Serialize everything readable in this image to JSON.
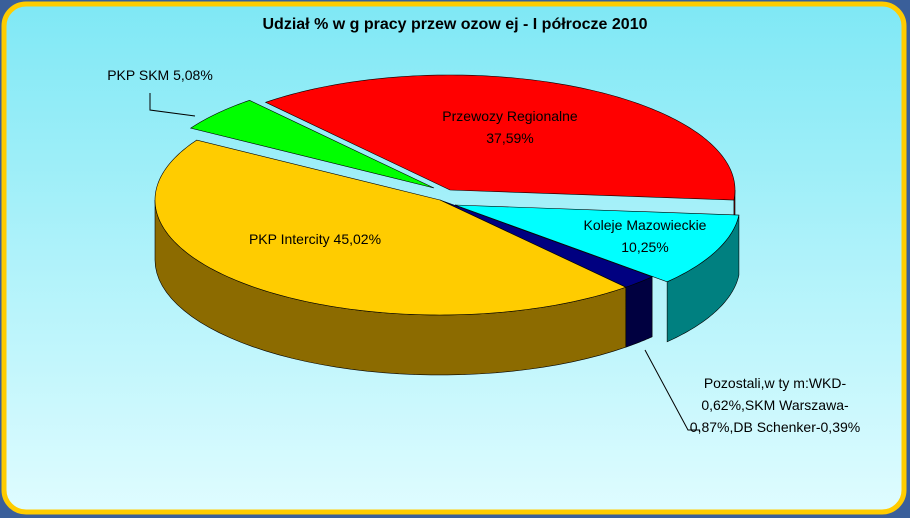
{
  "chart_data": {
    "type": "pie3d",
    "title": "Udział % w g pracy przew ozow ej - I półrocze 2010",
    "categories": [
      "Przewozy Regionalne",
      "Koleje Mazowieckie",
      "Pozostali,w ty m:WKD-0,62%,SKM Warszawa-0,87%,DB Schenker-0,39%",
      "PKP Intercity",
      "PKP SKM"
    ],
    "values": [
      37.59,
      10.25,
      2.06,
      45.02,
      5.08
    ],
    "value_labels": [
      "37,59%",
      "10,25%",
      null,
      "45,02%",
      "5,08%"
    ],
    "colors": [
      "#ff0000",
      "#00ffff",
      "#000080",
      "#ffcc00",
      "#00ff00"
    ],
    "side_colors": [
      "#800000",
      "#008080",
      "#000040",
      "#8c6b00",
      "#008000"
    ]
  }
}
